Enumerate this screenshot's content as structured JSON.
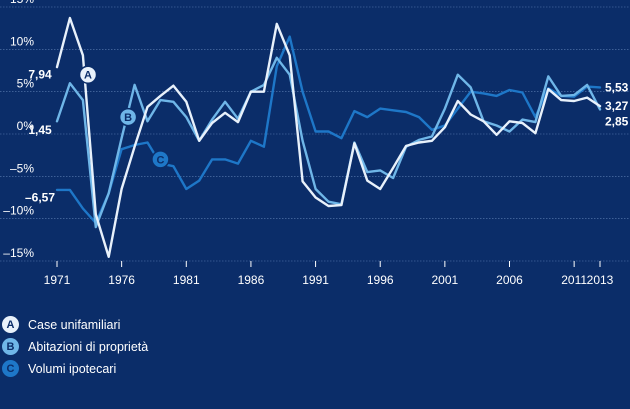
{
  "chart_data": {
    "type": "line",
    "x": [
      1971,
      1972,
      1973,
      1974,
      1975,
      1976,
      1977,
      1978,
      1979,
      1980,
      1981,
      1982,
      1983,
      1984,
      1985,
      1986,
      1987,
      1988,
      1989,
      1990,
      1991,
      1992,
      1993,
      1994,
      1995,
      1996,
      1997,
      1998,
      1999,
      2000,
      2001,
      2002,
      2003,
      2004,
      2005,
      2006,
      2007,
      2008,
      2009,
      2010,
      2011,
      2012,
      2013
    ],
    "xticks": [
      1971,
      1976,
      1981,
      1986,
      1991,
      1996,
      2001,
      2006,
      2011,
      2013
    ],
    "xtick_labels": [
      "1971",
      "1976",
      "1981",
      "1986",
      "1991",
      "1996",
      "2001",
      "2006",
      "2011",
      "2013"
    ],
    "yticks": [
      15,
      10,
      5,
      0,
      -5,
      -10,
      -15
    ],
    "ytick_labels": [
      "15%",
      "10%",
      "5%",
      "0%",
      "–5%",
      "–10%",
      "–15%"
    ],
    "ylim": [
      -15,
      15
    ],
    "xlim": [
      1971,
      2013
    ],
    "series": [
      {
        "name": "Case unifamiliari",
        "badge": "A",
        "color": "#e8f1fb",
        "badge_color": "#e8f1fb",
        "values": [
          7.9,
          13.7,
          9.3,
          -9.5,
          -14.5,
          -6.5,
          -1.5,
          3.2,
          4.5,
          5.7,
          3.8,
          -0.8,
          1.3,
          2.5,
          1.4,
          5.0,
          5.0,
          13.0,
          9.3,
          -5.6,
          -7.5,
          -8.5,
          -8.4,
          -1.1,
          -5.5,
          -6.5,
          -4.0,
          -1.4,
          -1.0,
          -0.8,
          0.8,
          3.9,
          2.3,
          1.5,
          -0.1,
          1.5,
          1.3,
          0.1,
          5.3,
          4.0,
          3.9,
          4.3,
          3.3
        ],
        "start_label": "7,94",
        "end_label": "3,27"
      },
      {
        "name": "Abitazioni di proprietà",
        "badge": "B",
        "color": "#6fb6e8",
        "badge_color": "#6fb6e8",
        "values": [
          1.5,
          6.0,
          4.0,
          -11.0,
          -7.0,
          -0.5,
          5.8,
          1.5,
          4.0,
          3.8,
          2.0,
          -0.8,
          1.7,
          3.8,
          1.8,
          5.0,
          5.8,
          9.0,
          7.0,
          -0.8,
          -6.5,
          -8.0,
          -8.3,
          -1.0,
          -4.5,
          -4.3,
          -5.2,
          -1.5,
          -0.7,
          -0.3,
          3.0,
          7.0,
          5.5,
          1.5,
          1.0,
          0.3,
          1.7,
          1.4,
          6.8,
          4.5,
          4.6,
          5.8,
          2.9
        ],
        "start_label": "1,45",
        "end_label": "2,85"
      },
      {
        "name": "Volumi ipotecari",
        "badge": "C",
        "color": "#1e77c8",
        "badge_color": "#1e77c8",
        "values": [
          -6.6,
          -6.6,
          -8.8,
          -10.5,
          -7.0,
          -1.8,
          -1.3,
          -1.0,
          -3.5,
          -3.8,
          -6.5,
          -5.5,
          -3.0,
          -3.0,
          -3.5,
          -0.8,
          -1.5,
          8.0,
          11.5,
          5.0,
          0.3,
          0.3,
          -0.5,
          2.7,
          2.0,
          3.0,
          2.8,
          2.6,
          2.0,
          0.5,
          1.0,
          3.0,
          5.0,
          4.8,
          4.5,
          5.2,
          4.9,
          2.0,
          5.4,
          4.5,
          4.4,
          5.6,
          5.5
        ],
        "start_label": "–6,57",
        "end_label": "5,53"
      }
    ],
    "legend_placement": "bottom-left"
  }
}
